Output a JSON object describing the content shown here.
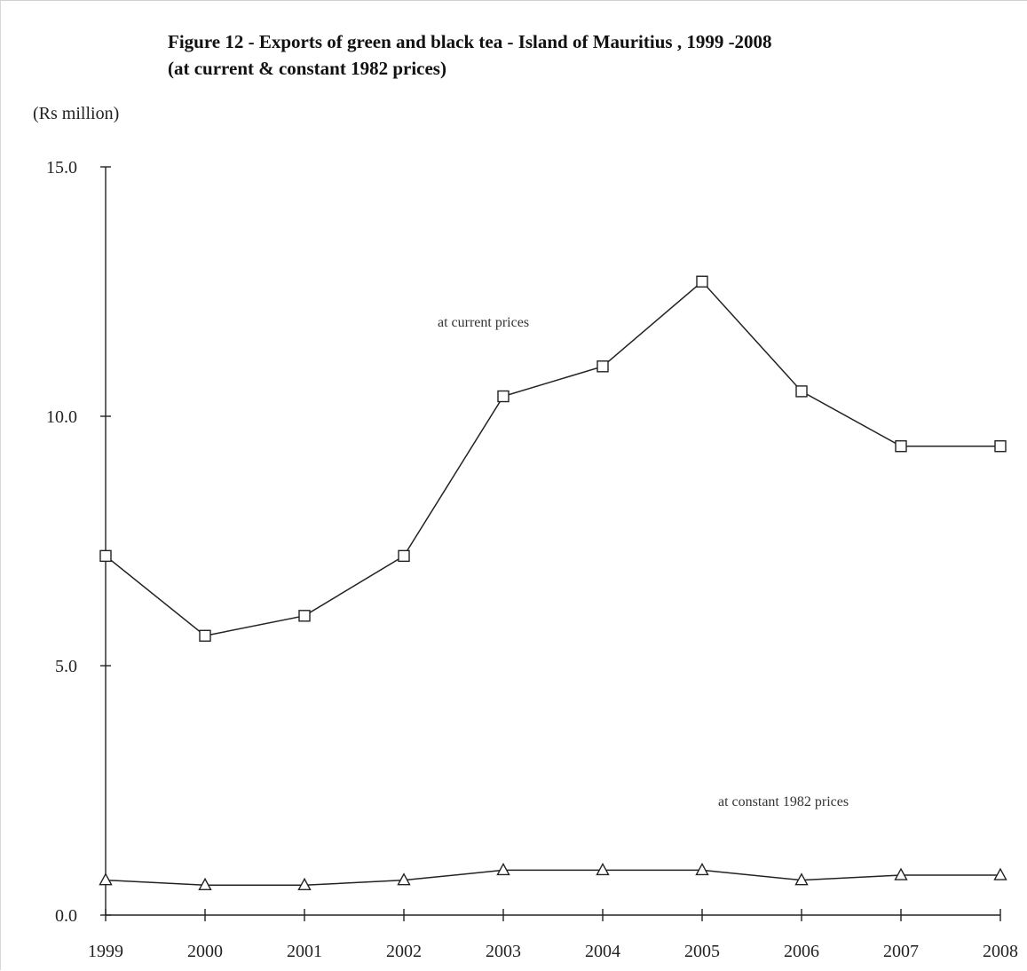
{
  "chart_data": {
    "type": "line",
    "title": "Figure 12 - Exports of green and  black tea - Island of Mauritius  , 1999 -2008",
    "subtitle": "(at current & constant 1982 prices)",
    "ylabel": "(Rs million)",
    "xlabel": "",
    "ylim": [
      0,
      15
    ],
    "y_ticks": [
      "0.0",
      "5.0",
      "10.0",
      "15.0"
    ],
    "y_tick_values": [
      0,
      5,
      10,
      15
    ],
    "categories": [
      "1999",
      "2000",
      "2001",
      "2002",
      "2003",
      "2004",
      "2005",
      "2006",
      "2007",
      "2008"
    ],
    "series": [
      {
        "name": "at current prices",
        "marker": "square",
        "values": [
          7.2,
          5.6,
          6.0,
          7.2,
          10.4,
          11.0,
          12.7,
          10.5,
          9.4,
          9.4
        ]
      },
      {
        "name": "at constant 1982 prices",
        "marker": "triangle",
        "values": [
          0.7,
          0.6,
          0.6,
          0.7,
          0.9,
          0.9,
          0.9,
          0.7,
          0.8,
          0.8
        ]
      }
    ],
    "grid": false,
    "legend": "inline labels near each line",
    "line_color": "#222222"
  }
}
